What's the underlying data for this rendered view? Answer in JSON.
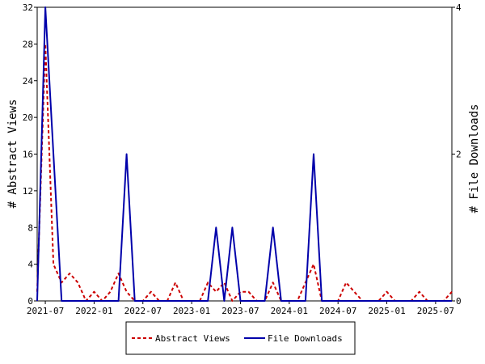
{
  "chart_data": {
    "type": "line",
    "title": "",
    "xlabel": "",
    "ylabel": "# Abstract Views",
    "y2label": "# File Downloads",
    "ylim": [
      0,
      32
    ],
    "y2lim": [
      0,
      4
    ],
    "yticks": [
      0,
      4,
      8,
      12,
      16,
      20,
      24,
      28,
      32
    ],
    "y2ticks": [
      0,
      2,
      4
    ],
    "xlim": [
      "2021-06",
      "2025-09"
    ],
    "xticks": [
      "2021-07",
      "2022-01",
      "2022-07",
      "2023-01",
      "2023-07",
      "2024-01",
      "2024-07",
      "2025-01",
      "2025-07"
    ],
    "grid": false,
    "legend_position": "bottom",
    "x": [
      "2021-06",
      "2021-07",
      "2021-08",
      "2021-09",
      "2021-10",
      "2021-11",
      "2021-12",
      "2022-01",
      "2022-02",
      "2022-03",
      "2022-04",
      "2022-05",
      "2022-06",
      "2022-07",
      "2022-08",
      "2022-09",
      "2022-10",
      "2022-11",
      "2022-12",
      "2023-01",
      "2023-02",
      "2023-03",
      "2023-04",
      "2023-05",
      "2023-06",
      "2023-07",
      "2023-08",
      "2023-09",
      "2023-10",
      "2023-11",
      "2023-12",
      "2024-01",
      "2024-02",
      "2024-03",
      "2024-04",
      "2024-05",
      "2024-06",
      "2024-07",
      "2024-08",
      "2024-09",
      "2024-10",
      "2024-11",
      "2024-12",
      "2025-01",
      "2025-02",
      "2025-03",
      "2025-04",
      "2025-05",
      "2025-06",
      "2025-07",
      "2025-08",
      "2025-09"
    ],
    "series": [
      {
        "name": "Abstract Views",
        "axis": "left",
        "color": "#cc0000",
        "dash": "dashed",
        "values": [
          1,
          28,
          4,
          2,
          3,
          2,
          0,
          1,
          0,
          1,
          3,
          1,
          0,
          0,
          1,
          0,
          0,
          2,
          0,
          0,
          0,
          2,
          1,
          2,
          0,
          1,
          1,
          0,
          0,
          2,
          0,
          0,
          0,
          2,
          4,
          0,
          0,
          0,
          2,
          1,
          0,
          0,
          0,
          1,
          0,
          0,
          0,
          1,
          0,
          0,
          0,
          1
        ]
      },
      {
        "name": "File Downloads",
        "axis": "right",
        "color": "#0000aa",
        "dash": "solid",
        "values": [
          0,
          4,
          2,
          0,
          0,
          0,
          0,
          0,
          0,
          0,
          0,
          2,
          0,
          0,
          0,
          0,
          0,
          0,
          0,
          0,
          0,
          0,
          1,
          0,
          1,
          0,
          0,
          0,
          0,
          1,
          0,
          0,
          0,
          0,
          2,
          0,
          0,
          0,
          0,
          0,
          0,
          0,
          0,
          0,
          0,
          0,
          0,
          0,
          0,
          0,
          0,
          0
        ]
      }
    ]
  },
  "legend": {
    "abstract_views": "Abstract Views",
    "file_downloads": "File Downloads"
  },
  "colors": {
    "views": "#cc0000",
    "downloads": "#0000aa",
    "axis": "#000000"
  }
}
